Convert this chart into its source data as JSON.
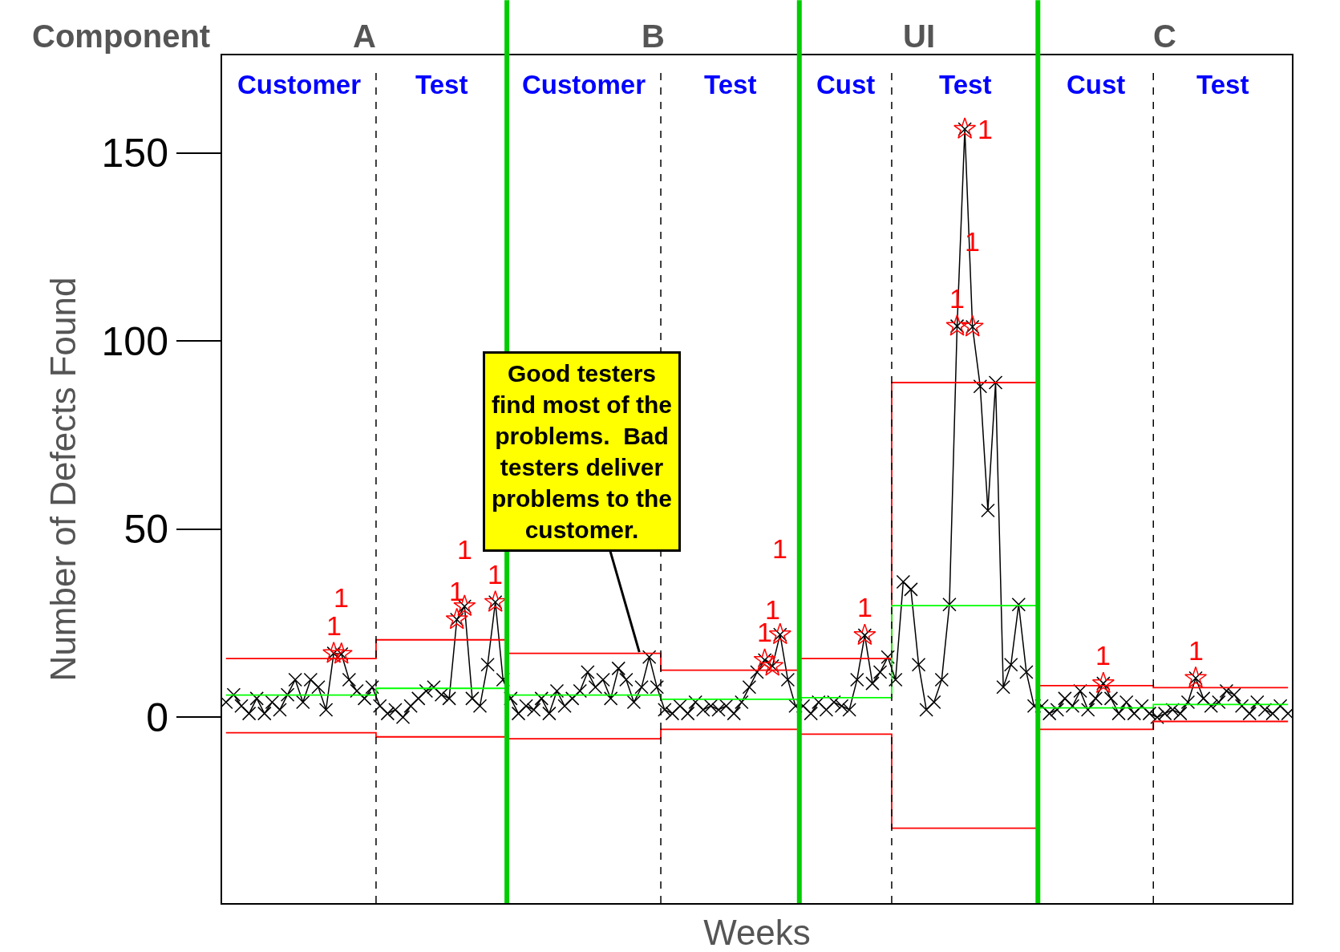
{
  "chart_data": {
    "type": "line",
    "xlabel": "Weeks",
    "ylabel": "Number of Defects Found",
    "categories": [
      null,
      null,
      null,
      null,
      null,
      null,
      null,
      null,
      null,
      null,
      null,
      null,
      null,
      null,
      null,
      null,
      null,
      null,
      null,
      null,
      null,
      null,
      null,
      null,
      null,
      null,
      null,
      null,
      null,
      null,
      null,
      null,
      null,
      null,
      null,
      null,
      null,
      null,
      null,
      null,
      null,
      null,
      null,
      null,
      null,
      null,
      null,
      null,
      null,
      null,
      null,
      null,
      null,
      null,
      null,
      null,
      null,
      null,
      null,
      null,
      null,
      null,
      null,
      null,
      null,
      null,
      null,
      null,
      null,
      null,
      null,
      null,
      null,
      null,
      null,
      null,
      null,
      null,
      null,
      null,
      null,
      null,
      null,
      null,
      null,
      null,
      null,
      null,
      null,
      null,
      null,
      null,
      null,
      null,
      null,
      null,
      null,
      null,
      null,
      null,
      null,
      null,
      null,
      null,
      null,
      null,
      null,
      null,
      null,
      null,
      null,
      null,
      null,
      null,
      null,
      null,
      null,
      null,
      null,
      null,
      null,
      null,
      null,
      null,
      null,
      null,
      null,
      null,
      null,
      null,
      null,
      null,
      null,
      null,
      null,
      null,
      null,
      null,
      null
    ],
    "ylim": [
      -49.4,
      176
    ],
    "yticks": [
      0,
      50,
      100,
      150
    ],
    "series": [
      {
        "color": "#000000",
        "marker": "cross",
        "values": [
          4,
          6,
          3,
          1,
          5,
          1,
          4,
          2,
          6,
          10,
          4,
          10,
          8,
          2,
          17,
          16.8,
          10,
          7,
          5,
          8,
          3,
          1,
          2,
          0,
          3,
          5,
          7,
          8,
          6,
          5,
          26,
          29.5,
          5,
          3,
          14,
          30.6,
          10,
          5,
          1,
          3,
          2,
          5,
          1,
          7,
          3,
          5,
          7,
          12,
          8,
          10,
          5,
          13,
          10,
          4,
          8,
          16,
          8,
          2,
          1,
          3,
          1,
          4,
          2,
          3,
          2,
          3,
          1,
          4,
          8,
          12,
          15.2,
          13.6,
          22,
          10,
          3,
          3,
          1,
          4,
          2,
          4,
          3,
          2,
          10,
          21.8,
          9,
          12,
          16,
          10,
          36,
          34,
          14,
          2,
          4,
          10,
          30,
          104,
          156.4,
          103.8,
          88,
          55,
          89,
          8,
          14,
          30,
          12,
          3,
          3,
          1,
          2,
          5,
          3,
          7,
          2,
          5,
          9,
          5,
          1,
          4,
          1,
          3,
          1,
          0,
          1,
          2,
          1,
          4,
          10.4,
          5,
          3,
          4,
          7,
          6,
          3,
          1,
          4,
          2,
          1,
          3,
          1
        ]
      },
      {
        "type": "scatter",
        "color": "#ff0000",
        "marker": "star",
        "values": [
          null,
          null,
          null,
          null,
          null,
          null,
          null,
          null,
          null,
          null,
          null,
          null,
          null,
          null,
          17,
          16.8,
          null,
          null,
          null,
          null,
          null,
          null,
          null,
          null,
          null,
          null,
          null,
          null,
          null,
          null,
          26,
          29.5,
          null,
          null,
          null,
          30.6,
          null,
          null,
          null,
          null,
          null,
          null,
          null,
          null,
          null,
          null,
          null,
          null,
          null,
          null,
          null,
          null,
          null,
          null,
          null,
          null,
          null,
          null,
          null,
          null,
          null,
          null,
          null,
          null,
          null,
          null,
          null,
          null,
          null,
          null,
          15.2,
          13.6,
          22,
          null,
          null,
          null,
          null,
          null,
          null,
          null,
          null,
          null,
          null,
          21.8,
          null,
          null,
          null,
          null,
          null,
          null,
          null,
          null,
          null,
          null,
          null,
          104,
          156.4,
          103.8,
          null,
          null,
          null,
          null,
          null,
          null,
          null,
          null,
          null,
          null,
          null,
          null,
          null,
          null,
          null,
          null,
          9,
          null,
          null,
          null,
          null,
          null,
          null,
          null,
          null,
          null,
          null,
          null,
          10.4,
          null,
          null,
          null,
          null,
          null,
          null,
          null,
          null,
          null,
          null,
          null,
          null
        ]
      },
      {
        "type": "step",
        "color": "#ff0000",
        "marker": "none",
        "values": [
          15.6,
          15.6,
          15.6,
          15.6,
          15.6,
          15.6,
          15.6,
          15.6,
          15.6,
          15.6,
          15.6,
          15.6,
          15.6,
          15.6,
          15.6,
          15.6,
          15.6,
          15.6,
          15.6,
          15.6,
          20.6,
          20.6,
          20.6,
          20.6,
          20.6,
          20.6,
          20.6,
          20.6,
          20.6,
          20.6,
          20.6,
          20.6,
          20.6,
          20.6,
          20.6,
          20.6,
          20.6,
          17,
          17,
          17,
          17,
          17,
          17,
          17,
          17,
          17,
          17,
          17,
          17,
          17,
          17,
          17,
          17,
          17,
          17,
          17,
          17,
          12.5,
          12.5,
          12.5,
          12.5,
          12.5,
          12.5,
          12.5,
          12.5,
          12.5,
          12.5,
          12.5,
          12.5,
          12.5,
          12.5,
          12.5,
          12.5,
          12.5,
          12.5,
          15.6,
          15.6,
          15.6,
          15.6,
          15.6,
          15.6,
          15.6,
          15.6,
          15.6,
          15.6,
          15.6,
          15.6,
          89,
          89,
          89,
          89,
          89,
          89,
          89,
          89,
          89,
          89,
          89,
          89,
          89,
          89,
          89,
          89,
          89,
          89,
          89,
          8.4,
          8.4,
          8.4,
          8.4,
          8.4,
          8.4,
          8.4,
          8.4,
          8.4,
          8.4,
          8.4,
          8.4,
          8.4,
          8.4,
          8.4,
          7.9,
          7.9,
          7.9,
          7.9,
          7.9,
          7.9,
          7.9,
          7.9,
          7.9,
          7.9,
          7.9,
          7.9,
          7.9,
          7.9,
          7.9,
          7.9,
          7.9,
          7.9
        ]
      },
      {
        "type": "step",
        "color": "#ff0000",
        "marker": "none",
        "values": [
          -4.1,
          -4.1,
          -4.1,
          -4.1,
          -4.1,
          -4.1,
          -4.1,
          -4.1,
          -4.1,
          -4.1,
          -4.1,
          -4.1,
          -4.1,
          -4.1,
          -4.1,
          -4.1,
          -4.1,
          -4.1,
          -4.1,
          -4.1,
          -5.2,
          -5.2,
          -5.2,
          -5.2,
          -5.2,
          -5.2,
          -5.2,
          -5.2,
          -5.2,
          -5.2,
          -5.2,
          -5.2,
          -5.2,
          -5.2,
          -5.2,
          -5.2,
          -5.2,
          -5.7,
          -5.7,
          -5.7,
          -5.7,
          -5.7,
          -5.7,
          -5.7,
          -5.7,
          -5.7,
          -5.7,
          -5.7,
          -5.7,
          -5.7,
          -5.7,
          -5.7,
          -5.7,
          -5.7,
          -5.7,
          -5.7,
          -5.7,
          -3.2,
          -3.2,
          -3.2,
          -3.2,
          -3.2,
          -3.2,
          -3.2,
          -3.2,
          -3.2,
          -3.2,
          -3.2,
          -3.2,
          -3.2,
          -3.2,
          -3.2,
          -3.2,
          -3.2,
          -3.2,
          -4.5,
          -4.5,
          -4.5,
          -4.5,
          -4.5,
          -4.5,
          -4.5,
          -4.5,
          -4.5,
          -4.5,
          -4.5,
          -4.5,
          -29.5,
          -29.5,
          -29.5,
          -29.5,
          -29.5,
          -29.5,
          -29.5,
          -29.5,
          -29.5,
          -29.5,
          -29.5,
          -29.5,
          -29.5,
          -29.5,
          -29.5,
          -29.5,
          -29.5,
          -29.5,
          -29.5,
          -3.2,
          -3.2,
          -3.2,
          -3.2,
          -3.2,
          -3.2,
          -3.2,
          -3.2,
          -3.2,
          -3.2,
          -3.2,
          -3.2,
          -3.2,
          -3.2,
          -3.2,
          -1.1,
          -1.1,
          -1.1,
          -1.1,
          -1.1,
          -1.1,
          -1.1,
          -1.1,
          -1.1,
          -1.1,
          -1.1,
          -1.1,
          -1.1,
          -1.1,
          -1.1,
          -1.1,
          -1.1,
          -1.1
        ]
      },
      {
        "type": "step",
        "color": "#00ff00",
        "marker": "none",
        "values": [
          5.9,
          5.9,
          5.9,
          5.9,
          5.9,
          5.9,
          5.9,
          5.9,
          5.9,
          5.9,
          5.9,
          5.9,
          5.9,
          5.9,
          5.9,
          5.9,
          5.9,
          5.9,
          5.9,
          5.9,
          7.7,
          7.7,
          7.7,
          7.7,
          7.7,
          7.7,
          7.7,
          7.7,
          7.7,
          7.7,
          7.7,
          7.7,
          7.7,
          7.7,
          7.7,
          7.7,
          7.7,
          5.9,
          5.9,
          5.9,
          5.9,
          5.9,
          5.9,
          5.9,
          5.9,
          5.9,
          5.9,
          5.9,
          5.9,
          5.9,
          5.9,
          5.9,
          5.9,
          5.9,
          5.9,
          5.9,
          5.9,
          4.8,
          4.8,
          4.8,
          4.8,
          4.8,
          4.8,
          4.8,
          4.8,
          4.8,
          4.8,
          4.8,
          4.8,
          4.8,
          4.8,
          4.8,
          4.8,
          4.8,
          4.8,
          5.2,
          5.2,
          5.2,
          5.2,
          5.2,
          5.2,
          5.2,
          5.2,
          5.2,
          5.2,
          5.2,
          5.2,
          29.7,
          29.7,
          29.7,
          29.7,
          29.7,
          29.7,
          29.7,
          29.7,
          29.7,
          29.7,
          29.7,
          29.7,
          29.7,
          29.7,
          29.7,
          29.7,
          29.7,
          29.7,
          29.7,
          2.5,
          2.5,
          2.5,
          2.5,
          2.5,
          2.5,
          2.5,
          2.5,
          2.5,
          2.5,
          2.5,
          2.5,
          2.5,
          2.5,
          2.5,
          3.4,
          3.4,
          3.4,
          3.4,
          3.4,
          3.4,
          3.4,
          3.4,
          3.4,
          3.4,
          3.4,
          3.4,
          3.4,
          3.4,
          3.4,
          3.4,
          3.4,
          3.4
        ]
      }
    ],
    "ref_lines": [
      {
        "axis": "x",
        "color": "#000000",
        "line_style": "dashed"
      },
      {
        "axis": "x",
        "color": "#00cc00",
        "line_style": "solid"
      },
      {
        "axis": "x",
        "color": "#000000",
        "line_style": "dashed"
      },
      {
        "axis": "x",
        "color": "#00cc00",
        "line_style": "solid"
      },
      {
        "axis": "x",
        "color": "#000000",
        "line_style": "dashed"
      },
      {
        "axis": "x",
        "color": "#00cc00",
        "line_style": "solid"
      },
      {
        "axis": "x",
        "color": "#000000",
        "line_style": "dashed"
      }
    ],
    "annotations": [
      "Component",
      "A",
      "B",
      "UI",
      "C",
      "Customer",
      "Test",
      "Customer",
      "Test",
      "Cust",
      "Test",
      "Cust",
      "Test",
      "Good testers\nfind most of the\nproblems.  Bad\ntesters deliver\nproblems to the\ncustomer.",
      "1",
      "1",
      "1",
      "1",
      "1",
      "1",
      "1",
      "1",
      "1",
      "1",
      "1",
      "1",
      "1",
      "1"
    ]
  }
}
